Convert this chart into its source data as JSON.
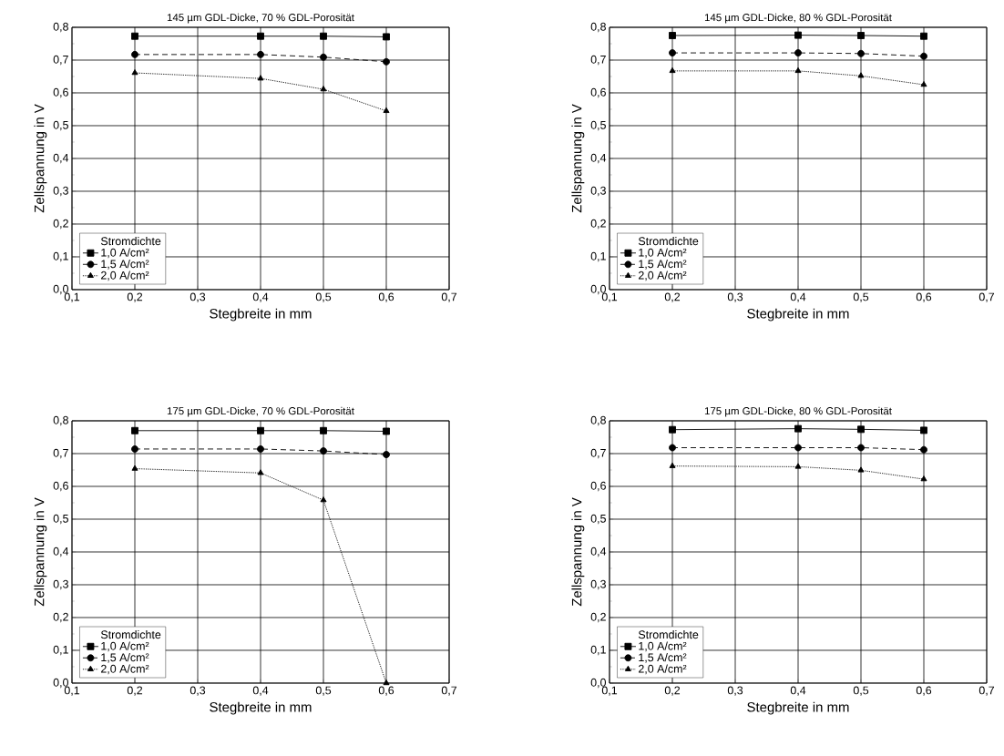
{
  "chart_data": [
    {
      "type": "line",
      "title": "145 µm GDL-Dicke, 70 % GDL-Porosität",
      "xlabel": "Stegbreite in mm",
      "ylabel": "Zellspannung in V",
      "legend_title": "Stromdichte",
      "legend": "bottom left",
      "grid": true,
      "x": [
        0.2,
        0.4,
        0.5,
        0.6
      ],
      "xlim": [
        0.1,
        0.7
      ],
      "xticks": [
        {
          "value": 0.1,
          "label": "0,1"
        },
        {
          "value": 0.2,
          "label": "0,2"
        },
        {
          "value": 0.3,
          "label": "0,3"
        },
        {
          "value": 0.4,
          "label": "0,4"
        },
        {
          "value": 0.5,
          "label": "0,5"
        },
        {
          "value": 0.6,
          "label": "0,6"
        },
        {
          "value": 0.7,
          "label": "0,7"
        }
      ],
      "ylim": [
        0.0,
        0.8
      ],
      "yticks": [
        {
          "value": 0.0,
          "label": "0,0"
        },
        {
          "value": 0.1,
          "label": "0,1"
        },
        {
          "value": 0.2,
          "label": "0,2"
        },
        {
          "value": 0.3,
          "label": "0,3"
        },
        {
          "value": 0.4,
          "label": "0,4"
        },
        {
          "value": 0.5,
          "label": "0,5"
        },
        {
          "value": 0.6,
          "label": "0,6"
        },
        {
          "value": 0.7,
          "label": "0,7"
        },
        {
          "value": 0.8,
          "label": "0,8"
        }
      ],
      "series": [
        {
          "name": "1,0 A/cm²",
          "color": "#000000",
          "marker": "square",
          "line_style": "solid",
          "values": [
            0.773,
            0.773,
            0.773,
            0.771
          ]
        },
        {
          "name": "1,5 A/cm²",
          "color": "#000000",
          "marker": "circle",
          "line_style": "dashed",
          "values": [
            0.717,
            0.717,
            0.709,
            0.695
          ]
        },
        {
          "name": "2,0 A/cm²",
          "color": "#000000",
          "marker": "triangle",
          "line_style": "dotted",
          "values": [
            0.661,
            0.644,
            0.611,
            0.545
          ]
        }
      ]
    },
    {
      "type": "line",
      "title": "145 µm GDL-Dicke, 80 % GDL-Porosität",
      "xlabel": "Stegbreite in mm",
      "ylabel": "Zellspannung in V",
      "legend_title": "Stromdichte",
      "legend": "bottom left",
      "grid": true,
      "x": [
        0.2,
        0.4,
        0.5,
        0.6
      ],
      "xlim": [
        0.1,
        0.7
      ],
      "xticks": [
        {
          "value": 0.1,
          "label": "0,1"
        },
        {
          "value": 0.2,
          "label": "0,2"
        },
        {
          "value": 0.3,
          "label": "0,3"
        },
        {
          "value": 0.4,
          "label": "0,4"
        },
        {
          "value": 0.5,
          "label": "0,5"
        },
        {
          "value": 0.6,
          "label": "0,6"
        },
        {
          "value": 0.7,
          "label": "0,7"
        }
      ],
      "ylim": [
        0.0,
        0.8
      ],
      "yticks": [
        {
          "value": 0.0,
          "label": "0,0"
        },
        {
          "value": 0.1,
          "label": "0,1"
        },
        {
          "value": 0.2,
          "label": "0,2"
        },
        {
          "value": 0.3,
          "label": "0,3"
        },
        {
          "value": 0.4,
          "label": "0,4"
        },
        {
          "value": 0.5,
          "label": "0,5"
        },
        {
          "value": 0.6,
          "label": "0,6"
        },
        {
          "value": 0.7,
          "label": "0,7"
        },
        {
          "value": 0.8,
          "label": "0,8"
        }
      ],
      "series": [
        {
          "name": "1,0 A/cm²",
          "color": "#000000",
          "marker": "square",
          "line_style": "solid",
          "values": [
            0.775,
            0.776,
            0.775,
            0.773
          ]
        },
        {
          "name": "1,5 A/cm²",
          "color": "#000000",
          "marker": "circle",
          "line_style": "dashed",
          "values": [
            0.722,
            0.722,
            0.72,
            0.712
          ]
        },
        {
          "name": "2,0 A/cm²",
          "color": "#000000",
          "marker": "triangle",
          "line_style": "dotted",
          "values": [
            0.667,
            0.667,
            0.652,
            0.625
          ]
        }
      ]
    },
    {
      "type": "line",
      "title": "175 µm GDL-Dicke, 70 % GDL-Porosität",
      "xlabel": "Stegbreite in mm",
      "ylabel": "Zellspannung in V",
      "legend_title": "Stromdichte",
      "legend": "bottom left",
      "grid": true,
      "x": [
        0.2,
        0.4,
        0.5,
        0.6
      ],
      "xlim": [
        0.1,
        0.7
      ],
      "xticks": [
        {
          "value": 0.1,
          "label": "0,1"
        },
        {
          "value": 0.2,
          "label": "0,2"
        },
        {
          "value": 0.3,
          "label": "0,3"
        },
        {
          "value": 0.4,
          "label": "0,4"
        },
        {
          "value": 0.5,
          "label": "0,5"
        },
        {
          "value": 0.6,
          "label": "0,6"
        },
        {
          "value": 0.7,
          "label": "0,7"
        }
      ],
      "ylim": [
        0.0,
        0.8
      ],
      "yticks": [
        {
          "value": 0.0,
          "label": "0,0"
        },
        {
          "value": 0.1,
          "label": "0,1"
        },
        {
          "value": 0.2,
          "label": "0,2"
        },
        {
          "value": 0.3,
          "label": "0,3"
        },
        {
          "value": 0.4,
          "label": "0,4"
        },
        {
          "value": 0.5,
          "label": "0,5"
        },
        {
          "value": 0.6,
          "label": "0,6"
        },
        {
          "value": 0.7,
          "label": "0,7"
        },
        {
          "value": 0.8,
          "label": "0,8"
        }
      ],
      "series": [
        {
          "name": "1,0 A/cm²",
          "color": "#000000",
          "marker": "square",
          "line_style": "solid",
          "values": [
            0.77,
            0.77,
            0.77,
            0.768
          ]
        },
        {
          "name": "1,5 A/cm²",
          "color": "#000000",
          "marker": "circle",
          "line_style": "dashed",
          "values": [
            0.714,
            0.714,
            0.708,
            0.697
          ]
        },
        {
          "name": "2,0 A/cm²",
          "color": "#000000",
          "marker": "triangle",
          "line_style": "dotted",
          "values": [
            0.654,
            0.641,
            0.558,
            0.0
          ]
        }
      ]
    },
    {
      "type": "line",
      "title": "175 µm GDL-Dicke, 80 % GDL-Porosität",
      "xlabel": "Stegbreite in mm",
      "ylabel": "Zellspannung in V",
      "legend_title": "Stromdichte",
      "legend": "bottom left",
      "grid": true,
      "x": [
        0.2,
        0.4,
        0.5,
        0.6
      ],
      "xlim": [
        0.1,
        0.7
      ],
      "xticks": [
        {
          "value": 0.1,
          "label": "0,1"
        },
        {
          "value": 0.2,
          "label": "0,2"
        },
        {
          "value": 0.3,
          "label": "0,3"
        },
        {
          "value": 0.4,
          "label": "0,4"
        },
        {
          "value": 0.5,
          "label": "0,5"
        },
        {
          "value": 0.6,
          "label": "0,6"
        },
        {
          "value": 0.7,
          "label": "0,7"
        }
      ],
      "ylim": [
        0.0,
        0.8
      ],
      "yticks": [
        {
          "value": 0.0,
          "label": "0,0"
        },
        {
          "value": 0.1,
          "label": "0,1"
        },
        {
          "value": 0.2,
          "label": "0,2"
        },
        {
          "value": 0.3,
          "label": "0,3"
        },
        {
          "value": 0.4,
          "label": "0,4"
        },
        {
          "value": 0.5,
          "label": "0,5"
        },
        {
          "value": 0.6,
          "label": "0,6"
        },
        {
          "value": 0.7,
          "label": "0,7"
        },
        {
          "value": 0.8,
          "label": "0,8"
        }
      ],
      "series": [
        {
          "name": "1,0 A/cm²",
          "color": "#000000",
          "marker": "square",
          "line_style": "solid",
          "values": [
            0.773,
            0.776,
            0.774,
            0.771
          ]
        },
        {
          "name": "1,5 A/cm²",
          "color": "#000000",
          "marker": "circle",
          "line_style": "dashed",
          "values": [
            0.718,
            0.718,
            0.718,
            0.712
          ]
        },
        {
          "name": "2,0 A/cm²",
          "color": "#000000",
          "marker": "triangle",
          "line_style": "dotted",
          "values": [
            0.662,
            0.66,
            0.649,
            0.622
          ]
        }
      ]
    }
  ]
}
